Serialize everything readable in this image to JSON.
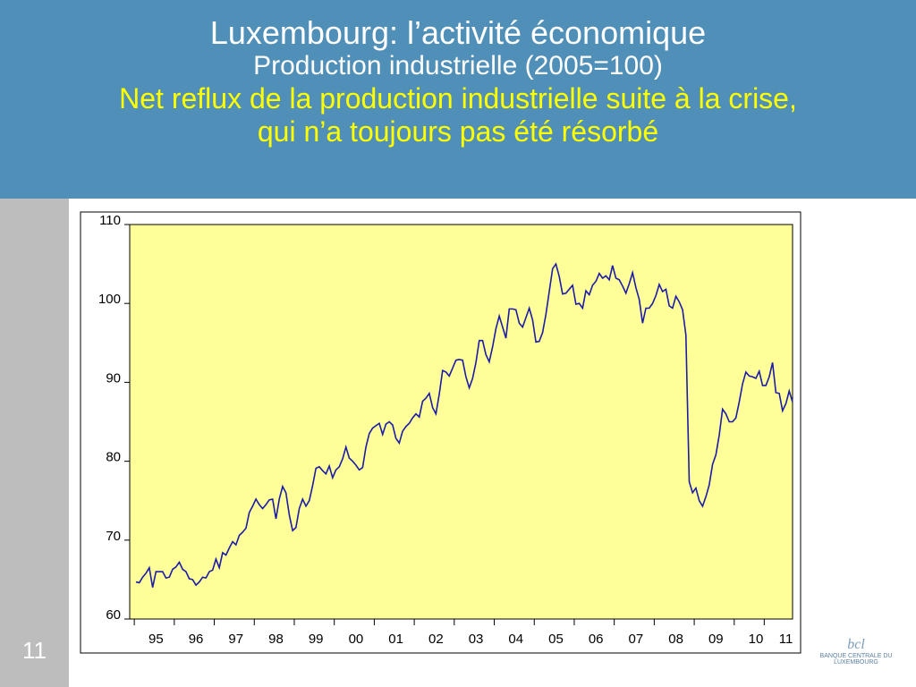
{
  "slide": {
    "title": "Luxembourg: l’activité économique",
    "message": [
      "Net reflux de la production industrielle suite à la crise,",
      "qui n’a toujours pas été résorbé"
    ],
    "number": "11",
    "logo": "BANQUE CENTRALE DU LUXEMBOURG"
  },
  "chart_data": {
    "type": "line",
    "title": "Production industrielle (2005=100)",
    "categories": [
      null,
      null,
      null,
      null,
      null,
      null,
      "95",
      null,
      null,
      null,
      null,
      null,
      null,
      null,
      null,
      null,
      null,
      null,
      "96",
      null,
      null,
      null,
      null,
      null,
      null,
      null,
      null,
      null,
      null,
      null,
      "97",
      null,
      null,
      null,
      null,
      null,
      null,
      null,
      null,
      null,
      null,
      null,
      "98",
      null,
      null,
      null,
      null,
      null,
      null,
      null,
      null,
      null,
      null,
      null,
      "99",
      null,
      null,
      null,
      null,
      null,
      null,
      null,
      null,
      null,
      null,
      null,
      "00",
      null,
      null,
      null,
      null,
      null,
      null,
      null,
      null,
      null,
      null,
      null,
      "01",
      null,
      null,
      null,
      null,
      null,
      null,
      null,
      null,
      null,
      null,
      null,
      "02",
      null,
      null,
      null,
      null,
      null,
      null,
      null,
      null,
      null,
      null,
      null,
      "03",
      null,
      null,
      null,
      null,
      null,
      null,
      null,
      null,
      null,
      null,
      null,
      "04",
      null,
      null,
      null,
      null,
      null,
      null,
      null,
      null,
      null,
      null,
      null,
      "05",
      null,
      null,
      null,
      null,
      null,
      null,
      null,
      null,
      null,
      null,
      null,
      "06",
      null,
      null,
      null,
      null,
      null,
      null,
      null,
      null,
      null,
      null,
      null,
      "07",
      null,
      null,
      null,
      null,
      null,
      null,
      null,
      null,
      null,
      null,
      null,
      "08",
      null,
      null,
      null,
      null,
      null,
      null,
      null,
      null,
      null,
      null,
      null,
      "09",
      null,
      null,
      null,
      null,
      null,
      null,
      null,
      null,
      null,
      null,
      null,
      "10",
      null,
      null,
      null,
      null,
      null,
      null,
      null,
      null,
      "11",
      null,
      null
    ],
    "series": [
      {
        "color": "#1c1ca8",
        "values": [
          64.7,
          64.6,
          65.3,
          65.8,
          66.5,
          64.0,
          66.0,
          66.0,
          66.0,
          65.2,
          65.3,
          66.3,
          66.6,
          67.2,
          66.3,
          66.0,
          65.1,
          65.0,
          64.3,
          64.7,
          65.3,
          65.2,
          66.0,
          66.2,
          67.6,
          66.5,
          68.4,
          68.1,
          69.0,
          69.8,
          69.4,
          70.6,
          71.0,
          71.5,
          73.5,
          74.3,
          75.2,
          74.5,
          74.0,
          74.5,
          75.1,
          75.2,
          72.7,
          75.2,
          76.8,
          76.0,
          73.2,
          71.2,
          71.6,
          74.0,
          75.2,
          74.3,
          75.0,
          76.9,
          79.1,
          79.3,
          78.8,
          78.4,
          79.4,
          77.9,
          78.9,
          79.3,
          80.3,
          81.8,
          80.4,
          80.0,
          79.5,
          78.9,
          79.2,
          81.8,
          83.5,
          84.2,
          84.5,
          84.8,
          83.4,
          84.7,
          85.0,
          84.6,
          82.9,
          82.3,
          83.8,
          84.4,
          84.8,
          85.5,
          86.0,
          85.6,
          87.6,
          88.0,
          88.6,
          86.8,
          86.0,
          88.5,
          91.5,
          91.3,
          90.8,
          91.8,
          92.8,
          92.9,
          92.8,
          90.7,
          89.3,
          90.5,
          92.5,
          95.3,
          95.3,
          93.5,
          92.6,
          94.5,
          96.8,
          98.4,
          97.0,
          95.6,
          99.3,
          99.3,
          99.2,
          97.5,
          97.0,
          98.2,
          99.4,
          97.9,
          95.1,
          95.2,
          96.3,
          98.6,
          101.5,
          104.4,
          105.0,
          103.4,
          101.2,
          101.3,
          101.8,
          102.3,
          99.9,
          100.0,
          99.4,
          101.6,
          101.1,
          102.3,
          102.8,
          103.8,
          103.2,
          103.5,
          103.0,
          104.8,
          103.2,
          103.0,
          102.2,
          101.3,
          102.5,
          103.9,
          102.0,
          100.5,
          97.5,
          99.4,
          99.4,
          100.0,
          101.0,
          102.4,
          101.5,
          101.8,
          99.7,
          99.4,
          100.9,
          100.2,
          99.2,
          96.0,
          77.4,
          76.0,
          76.6,
          75.0,
          74.3,
          75.5,
          77.0,
          79.6,
          80.8,
          83.3,
          86.6,
          86.0,
          85.0,
          85.0,
          85.5,
          87.5,
          89.8,
          91.3,
          90.8,
          90.7,
          90.5,
          91.4,
          89.6,
          89.6,
          90.7,
          92.5,
          88.7,
          88.6,
          86.4,
          87.3,
          88.9,
          87.5
        ]
      }
    ],
    "ylim": [
      60,
      110
    ],
    "yticks": [
      60,
      70,
      80,
      90,
      100,
      110
    ],
    "plot_background": "#ffff99"
  }
}
